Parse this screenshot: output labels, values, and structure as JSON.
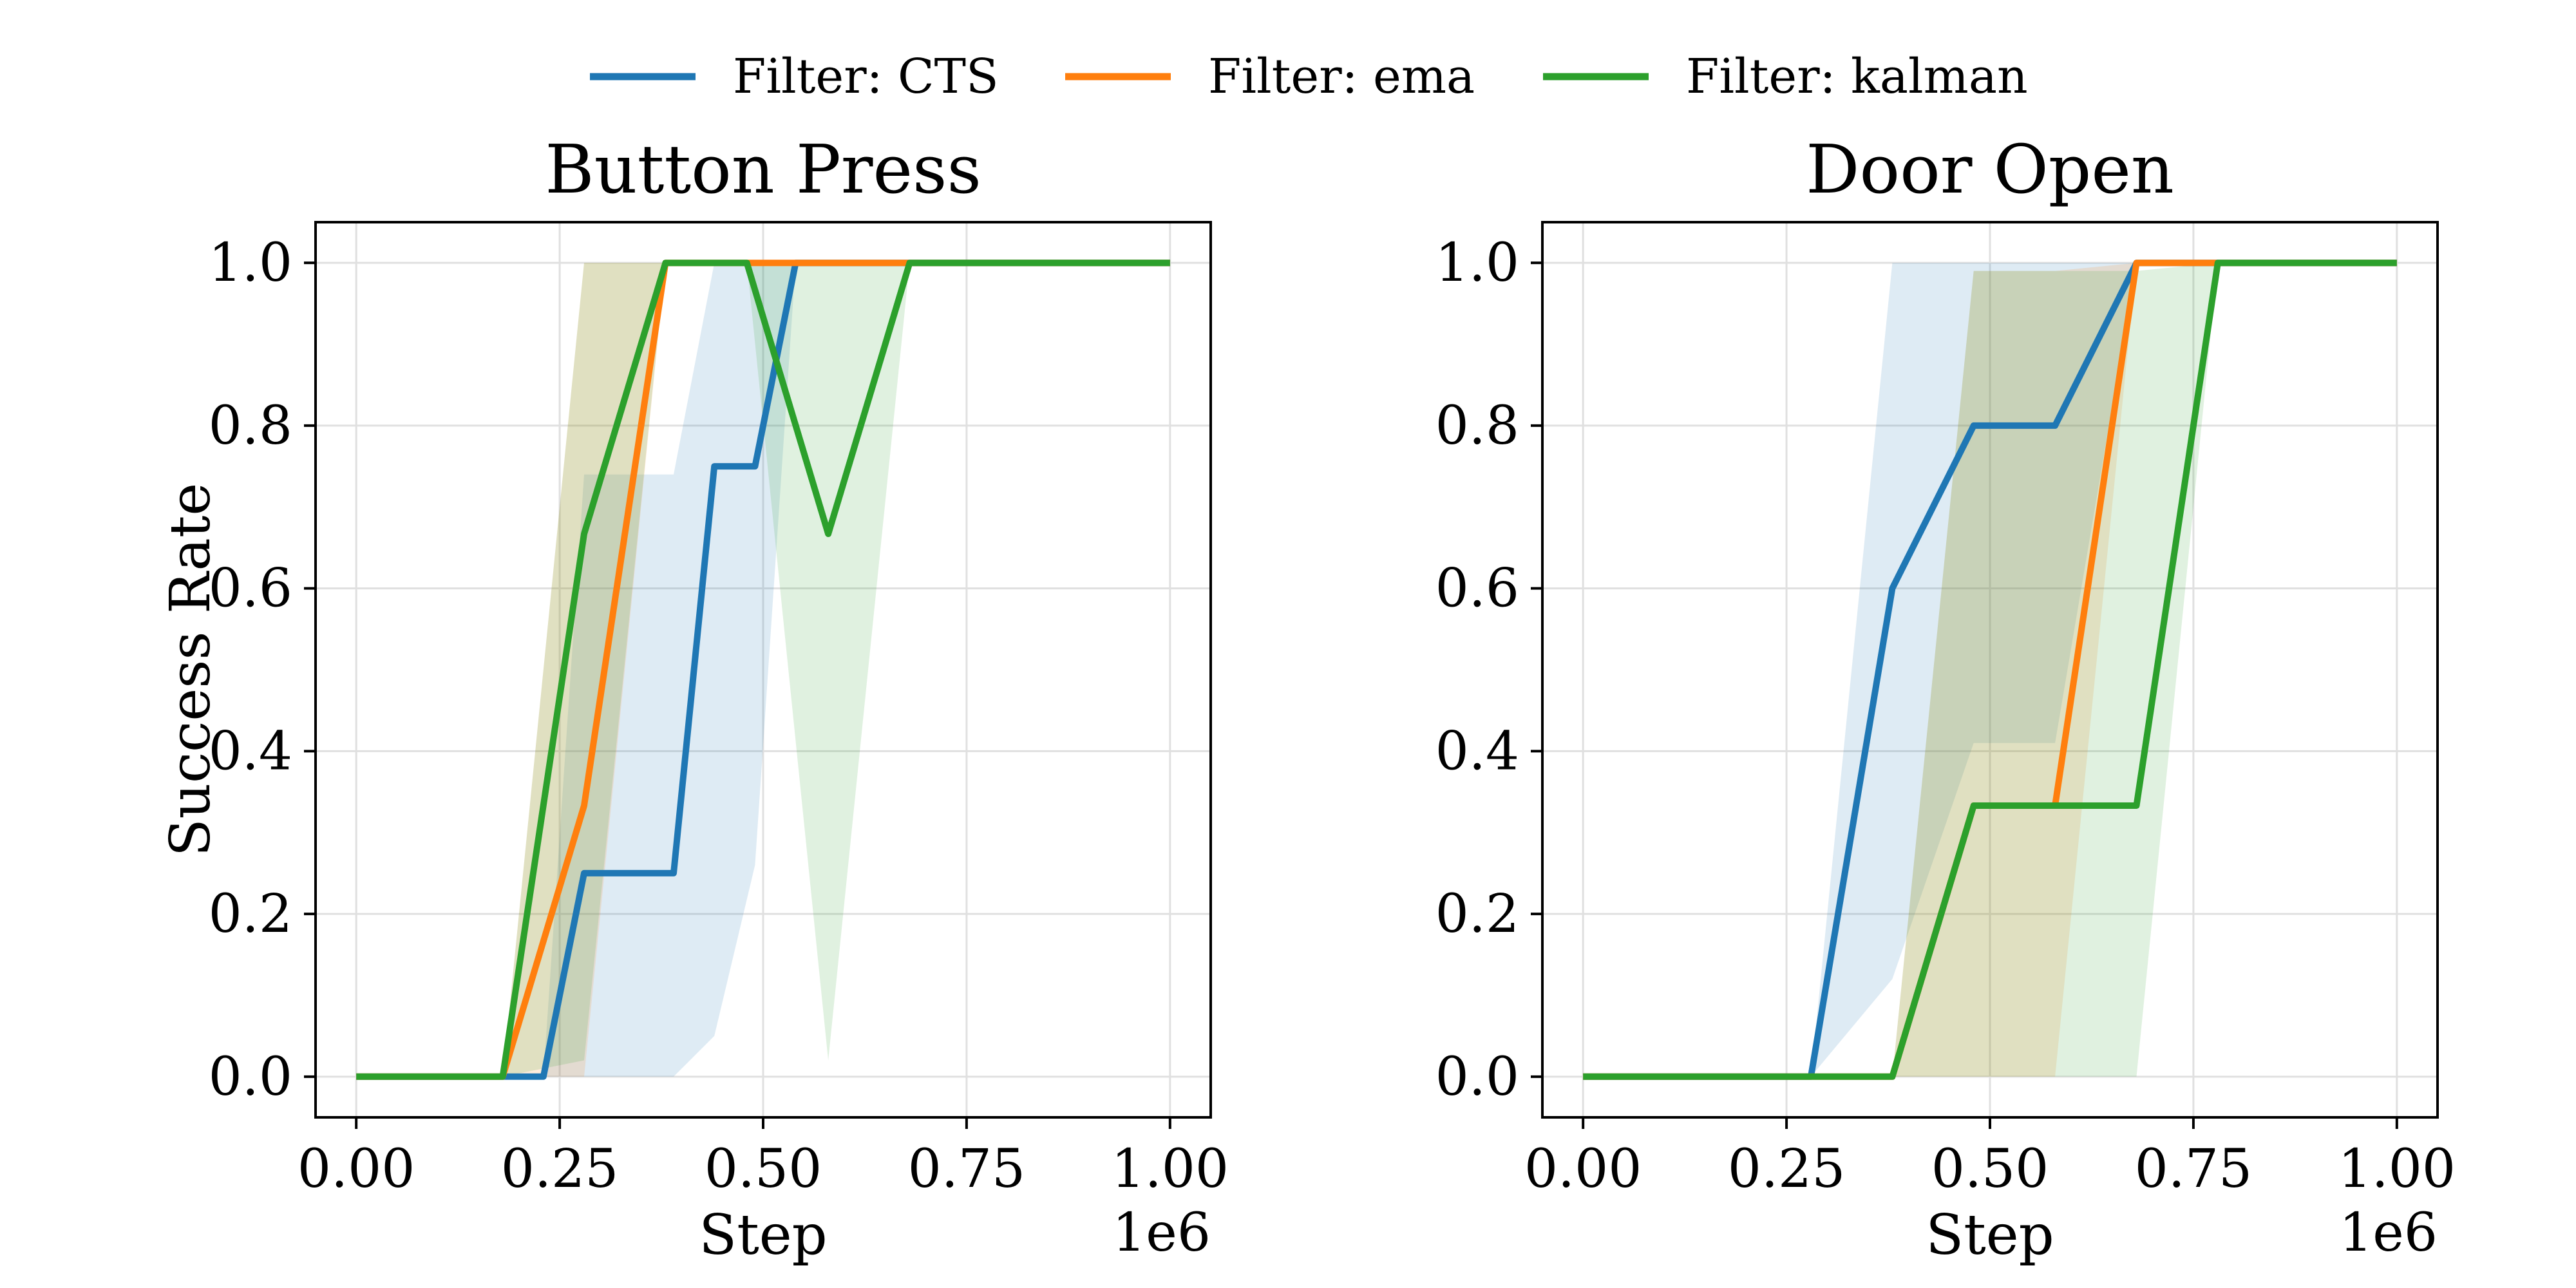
{
  "legend": {
    "placement": "top-center",
    "entries": [
      {
        "label": "Filter: CTS",
        "color": "#1f77b4"
      },
      {
        "label": "Filter: ema",
        "color": "#ff7f0e"
      },
      {
        "label": "Filter: kalman",
        "color": "#2ca02c"
      }
    ]
  },
  "chart_data": [
    {
      "type": "line",
      "title": "Button Press",
      "xlabel": "Step",
      "ylabel": "Success Rate",
      "x_multiplier_label": "1e6",
      "xlim": [
        -0.05,
        1.05
      ],
      "ylim": [
        -0.05,
        1.05
      ],
      "xticks": [
        "0.00",
        "0.25",
        "0.50",
        "0.75",
        "1.00"
      ],
      "xtick_values": [
        0,
        0.25,
        0.5,
        0.75,
        1.0
      ],
      "yticks": [
        "0.0",
        "0.2",
        "0.4",
        "0.6",
        "0.8",
        "1.0"
      ],
      "ytick_values": [
        0,
        0.2,
        0.4,
        0.6,
        0.8,
        1.0
      ],
      "grid": true,
      "series": [
        {
          "name": "Filter: CTS",
          "color": "#1f77b4",
          "x": [
            0,
            0.18,
            0.23,
            0.28,
            0.39,
            0.44,
            0.49,
            0.54,
            0.64,
            1.0
          ],
          "y": [
            0,
            0,
            0,
            0.25,
            0.25,
            0.75,
            0.75,
            1.0,
            1.0,
            1.0
          ],
          "lower": [
            0,
            0,
            0,
            0,
            0,
            0.05,
            0.26,
            1.0,
            1.0,
            1.0
          ],
          "upper": [
            0,
            0,
            0,
            0.74,
            0.74,
            1.0,
            1.0,
            1.0,
            1.0,
            1.0
          ]
        },
        {
          "name": "Filter: ema",
          "color": "#ff7f0e",
          "x": [
            0,
            0.18,
            0.28,
            0.38,
            0.48,
            0.68,
            1.0
          ],
          "y": [
            0,
            0,
            0.333,
            1.0,
            1.0,
            1.0,
            1.0
          ],
          "lower": [
            0,
            0,
            0,
            1.0,
            1.0,
            1.0,
            1.0
          ],
          "upper": [
            0,
            0,
            1.0,
            1.0,
            1.0,
            1.0,
            1.0
          ]
        },
        {
          "name": "Filter: kalman",
          "color": "#2ca02c",
          "x": [
            0,
            0.18,
            0.28,
            0.38,
            0.48,
            0.58,
            0.68,
            1.0
          ],
          "y": [
            0,
            0,
            0.667,
            1.0,
            1.0,
            0.667,
            1.0,
            1.0
          ],
          "lower": [
            0,
            0,
            0.02,
            1.0,
            1.0,
            0.02,
            1.0,
            1.0
          ],
          "upper": [
            0,
            0,
            1.0,
            1.0,
            1.0,
            1.0,
            1.0,
            1.0
          ]
        }
      ]
    },
    {
      "type": "line",
      "title": "Door Open",
      "xlabel": "Step",
      "ylabel": "",
      "x_multiplier_label": "1e6",
      "xlim": [
        -0.05,
        1.05
      ],
      "ylim": [
        -0.05,
        1.05
      ],
      "xticks": [
        "0.00",
        "0.25",
        "0.50",
        "0.75",
        "1.00"
      ],
      "xtick_values": [
        0,
        0.25,
        0.5,
        0.75,
        1.0
      ],
      "yticks": [
        "0.0",
        "0.2",
        "0.4",
        "0.6",
        "0.8",
        "1.0"
      ],
      "ytick_values": [
        0,
        0.2,
        0.4,
        0.6,
        0.8,
        1.0
      ],
      "grid": true,
      "series": [
        {
          "name": "Filter: CTS",
          "color": "#1f77b4",
          "x": [
            0,
            0.28,
            0.38,
            0.48,
            0.58,
            0.68,
            1.0
          ],
          "y": [
            0,
            0,
            0.6,
            0.8,
            0.8,
            1.0,
            1.0
          ],
          "lower": [
            0,
            0,
            0.12,
            0.41,
            0.41,
            1.0,
            1.0
          ],
          "upper": [
            0,
            0,
            1.0,
            1.0,
            1.0,
            1.0,
            1.0
          ]
        },
        {
          "name": "Filter: ema",
          "color": "#ff7f0e",
          "x": [
            0,
            0.38,
            0.48,
            0.58,
            0.68,
            1.0
          ],
          "y": [
            0,
            0,
            0.333,
            0.333,
            1.0,
            1.0
          ],
          "lower": [
            0,
            0,
            0,
            0,
            1.0,
            1.0
          ],
          "upper": [
            0,
            0,
            0.99,
            0.99,
            1.0,
            1.0
          ]
        },
        {
          "name": "Filter: kalman",
          "color": "#2ca02c",
          "x": [
            0,
            0.38,
            0.48,
            0.58,
            0.68,
            0.78,
            1.0
          ],
          "y": [
            0,
            0,
            0.333,
            0.333,
            0.333,
            1.0,
            1.0
          ],
          "lower": [
            0,
            0,
            0,
            0,
            0,
            1.0,
            1.0
          ],
          "upper": [
            0,
            0,
            0.99,
            0.99,
            0.99,
            1.0,
            1.0
          ]
        }
      ]
    }
  ]
}
